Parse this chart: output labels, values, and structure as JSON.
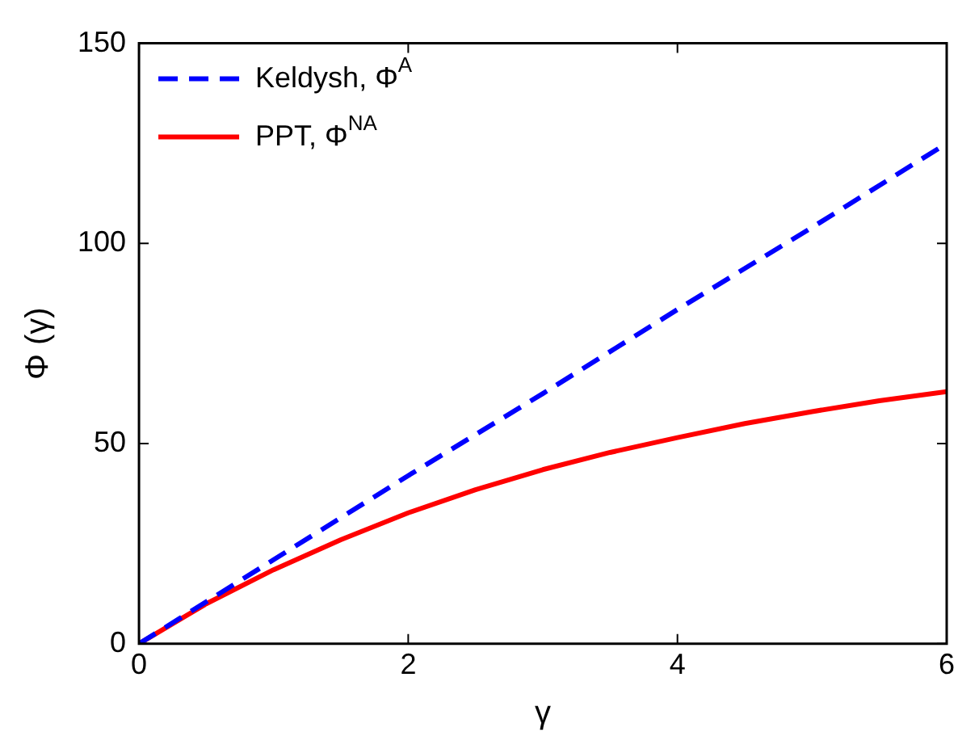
{
  "chart_data": {
    "type": "line",
    "xlabel": "γ",
    "ylabel": "Φ (γ)",
    "xlim": [
      0,
      6
    ],
    "xticks": [
      0,
      2,
      4,
      6
    ],
    "ylim": [
      0,
      150
    ],
    "yticks": [
      0,
      50,
      100,
      150
    ],
    "legend": "top left",
    "grid": false,
    "series": [
      {
        "name": "Keldysh, Φ$^{A}$",
        "color": "#0000ff",
        "line_style": "dashed",
        "x": [
          0,
          0.5,
          1,
          2,
          3,
          4,
          5,
          6
        ],
        "values": [
          0,
          10.5,
          21,
          42,
          62.5,
          83.5,
          104,
          125
        ]
      },
      {
        "name": "PPT, Φ$^{NA}$",
        "color": "#ff0000",
        "line_style": "solid",
        "x": [
          0,
          0.5,
          1,
          1.5,
          2,
          2.5,
          3,
          3.5,
          4,
          4.5,
          5,
          5.5,
          6
        ],
        "values": [
          0,
          10,
          18.5,
          26,
          32.7,
          38.5,
          43.5,
          47.8,
          51.5,
          55,
          58,
          60.7,
          63
        ]
      }
    ]
  }
}
